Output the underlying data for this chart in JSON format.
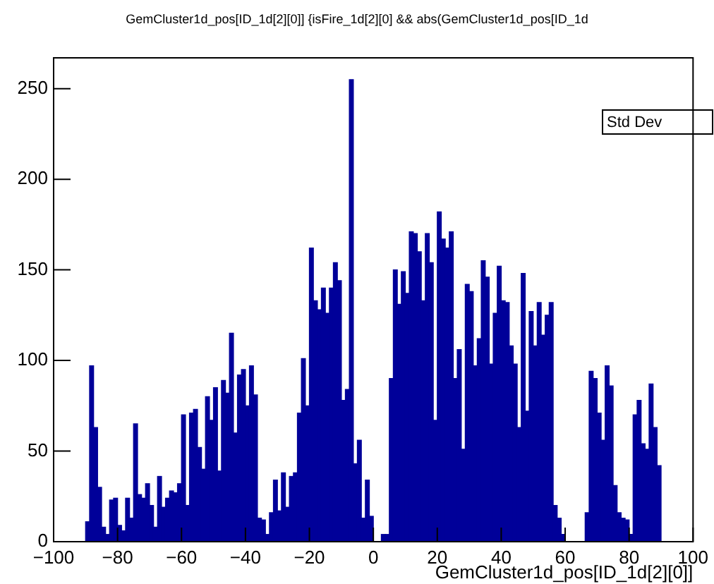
{
  "chart_data": {
    "type": "histogram",
    "title": "GemCluster1d_pos[ID_1d[2][0]] {isFire_1d[2][0] && abs(GemCluster1d_pos[ID_1d",
    "xlabel": "GemCluster1d_pos[ID_1d[2][0]]",
    "annotations": [
      "Std Dev"
    ],
    "bins": [
      -90,
      -88.75,
      -87.5,
      -86.25,
      -85,
      -83.75,
      -82.5,
      -81.25,
      -80,
      -78.75,
      -77.5,
      -76.25,
      -75,
      -73.75,
      -72.5,
      -71.25,
      -70,
      -68.75,
      -67.5,
      -66.25,
      -65,
      -63.75,
      -62.5,
      -61.25,
      -60,
      -58.75,
      -57.5,
      -56.25,
      -55,
      -53.75,
      -52.5,
      -51.25,
      -50,
      -48.75,
      -47.5,
      -46.25,
      -45,
      -43.75,
      -42.5,
      -41.25,
      -40,
      -38.75,
      -37.5,
      -36.25,
      -35,
      -33.75,
      -32.5,
      -31.25,
      -30,
      -28.75,
      -27.5,
      -26.25,
      -25,
      -23.75,
      -22.5,
      -21.25,
      -20,
      -18.75,
      -17.5,
      -16.25,
      -15,
      -13.75,
      -12.5,
      -11.25,
      -10,
      -8.75,
      -7.5,
      -6.25,
      -5,
      -3.75,
      -2.5,
      -1.25,
      0,
      1.25,
      2.5,
      3.75,
      5,
      6.25,
      7.5,
      8.75,
      10,
      11.25,
      12.5,
      13.75,
      15,
      16.25,
      17.5,
      18.75,
      20,
      21.25,
      22.5,
      23.75,
      25,
      26.25,
      27.5,
      28.75,
      30,
      31.25,
      32.5,
      33.75,
      35,
      36.25,
      37.5,
      38.75,
      40,
      41.25,
      42.5,
      43.75,
      45,
      46.25,
      47.5,
      48.75,
      50,
      51.25,
      52.5,
      53.75,
      55,
      56.25,
      57.5,
      58.75,
      60,
      61.25,
      62.5,
      63.75,
      65,
      66.25,
      67.5,
      68.75,
      70,
      71.25,
      72.5,
      73.75,
      75,
      76.25,
      77.5,
      78.75,
      80,
      81.25,
      82.5,
      83.75,
      85,
      86.25,
      87.5,
      88.75,
      90
    ],
    "values": [
      11,
      97,
      63,
      30,
      8,
      4,
      23,
      24,
      9,
      6,
      24,
      13,
      65,
      26,
      24,
      32,
      20,
      8,
      36,
      19,
      24,
      28,
      27,
      32,
      70,
      20,
      71,
      73,
      52,
      40,
      80,
      67,
      85,
      39,
      89,
      82,
      115,
      60,
      92,
      95,
      75,
      97,
      81,
      13,
      12,
      4,
      16,
      34,
      17,
      38,
      19,
      36,
      38,
      71,
      101,
      75,
      162,
      133,
      128,
      140,
      126,
      140,
      154,
      144,
      78,
      84,
      255,
      43,
      56,
      13,
      34,
      14,
      0,
      0,
      4,
      4,
      90,
      150,
      131,
      149,
      137,
      171,
      170,
      160,
      133,
      170,
      154,
      67,
      182,
      167,
      162,
      171,
      90,
      106,
      51,
      142,
      138,
      97,
      112,
      155,
      146,
      98,
      126,
      152,
      133,
      132,
      108,
      98,
      63,
      148,
      72,
      127,
      108,
      132,
      114,
      125,
      132,
      20,
      13,
      4,
      0,
      0,
      0,
      0,
      0,
      16,
      94,
      90,
      71,
      56,
      97,
      86,
      31,
      16,
      13,
      12,
      4,
      70,
      78,
      54,
      51,
      87,
      63,
      42
    ],
    "color": "#000099",
    "xlim": [
      -100,
      100
    ],
    "xticks": [
      -100,
      -80,
      -60,
      -40,
      -20,
      0,
      20,
      40,
      60,
      80,
      100
    ],
    "ylim": [
      0,
      267
    ],
    "yticks": [
      0,
      50,
      100,
      150,
      200,
      250
    ],
    "grid": false,
    "legend": false
  }
}
